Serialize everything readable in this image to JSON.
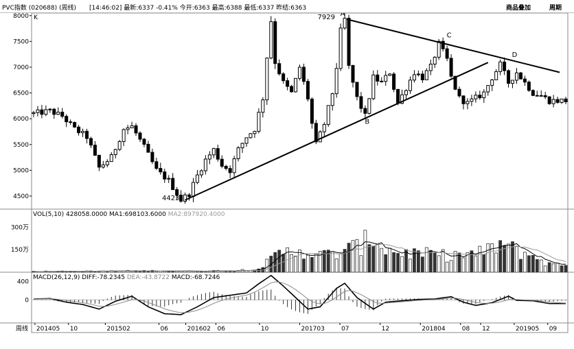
{
  "topbar": {
    "title": "PVC指数 (020688) (周线)",
    "quote": "[14:46:02]  最新:6337  -0.41%  今开:6363  最高:6388  最低:6337  昨结:6363",
    "btn_overlay": "商品叠加",
    "btn_period": "周期"
  },
  "chart_data": [
    {
      "type": "candlestick",
      "panel": "price",
      "label": "K",
      "ylim": [
        4300,
        8050
      ],
      "y_ticks": [
        8000,
        7500,
        7000,
        6500,
        6000,
        5500,
        5000,
        4500
      ],
      "annotations": [
        {
          "text": "A",
          "week": 75.5,
          "value": 8000
        },
        {
          "text": "7929",
          "week": 71.5,
          "value": 7929
        },
        {
          "text": "B",
          "week": 81.5,
          "value": 5900
        },
        {
          "text": "C",
          "week": 101.5,
          "value": 7580
        },
        {
          "text": "D",
          "week": 117.5,
          "value": 7200
        },
        {
          "text": "4423",
          "week": 33.5,
          "value": 4423
        }
      ],
      "trendlines": [
        {
          "from": [
            37,
            4423
          ],
          "to": [
            111,
            7090
          ]
        },
        {
          "from": [
            76.5,
            7929
          ],
          "to": [
            128.5,
            6900
          ]
        }
      ],
      "anchors": [
        [
          0,
          6100
        ],
        [
          4,
          6150
        ],
        [
          7,
          6050
        ],
        [
          10,
          5800
        ],
        [
          13,
          5650
        ],
        [
          16,
          5050
        ],
        [
          19,
          5250
        ],
        [
          22,
          5800
        ],
        [
          24,
          5850
        ],
        [
          27,
          5450
        ],
        [
          30,
          5000
        ],
        [
          33,
          4800
        ],
        [
          35,
          4550
        ],
        [
          36,
          4423
        ],
        [
          38,
          4550
        ],
        [
          40,
          4900
        ],
        [
          42,
          5200
        ],
        [
          44,
          5400
        ],
        [
          46,
          5100
        ],
        [
          48,
          5000
        ],
        [
          50,
          5400
        ],
        [
          52,
          5650
        ],
        [
          54,
          5800
        ],
        [
          56,
          6400
        ],
        [
          57,
          7200
        ],
        [
          58,
          7900
        ],
        [
          59,
          7100
        ],
        [
          61,
          6700
        ],
        [
          63,
          6500
        ],
        [
          65,
          7000
        ],
        [
          67,
          6400
        ],
        [
          68,
          5900
        ],
        [
          69,
          5500
        ],
        [
          71,
          5900
        ],
        [
          73,
          6500
        ],
        [
          74,
          7000
        ],
        [
          75,
          7700
        ],
        [
          76,
          7929
        ],
        [
          77,
          7000
        ],
        [
          79,
          6400
        ],
        [
          81,
          6050
        ],
        [
          83,
          6800
        ],
        [
          85,
          6700
        ],
        [
          87,
          6900
        ],
        [
          89,
          6300
        ],
        [
          91,
          6600
        ],
        [
          93,
          6900
        ],
        [
          95,
          6800
        ],
        [
          97,
          7000
        ],
        [
          99,
          7450
        ],
        [
          101,
          7150
        ],
        [
          102,
          6800
        ],
        [
          104,
          6400
        ],
        [
          106,
          6300
        ],
        [
          108,
          6400
        ],
        [
          110,
          6500
        ],
        [
          112,
          6800
        ],
        [
          114,
          7050
        ],
        [
          116,
          6700
        ],
        [
          118,
          6900
        ],
        [
          120,
          6700
        ],
        [
          122,
          6500
        ],
        [
          124,
          6450
        ],
        [
          126,
          6350
        ]
      ]
    },
    {
      "type": "bar",
      "panel": "volume",
      "header": {
        "name": "VOL(5,10)",
        "vol": "428058.0000",
        "ma1": "MA1:698103.6000",
        "ma2": "MA2:897920.4000",
        "ma1_color": "#000000",
        "ma2_color": "#999999"
      },
      "ylim": [
        0,
        4200000
      ],
      "y_ticks": [
        {
          "value": 3000000,
          "label": "300万"
        },
        {
          "value": 1500000,
          "label": "150万"
        }
      ],
      "anchors": [
        [
          0,
          60000
        ],
        [
          10,
          60000
        ],
        [
          20,
          80000
        ],
        [
          30,
          100000
        ],
        [
          40,
          70000
        ],
        [
          50,
          120000
        ],
        [
          55,
          250000
        ],
        [
          60,
          1200000
        ],
        [
          65,
          1500000
        ],
        [
          70,
          1100000
        ],
        [
          75,
          1300000
        ],
        [
          80,
          1800000
        ],
        [
          83,
          2400000
        ],
        [
          86,
          1500000
        ],
        [
          90,
          1300000
        ],
        [
          95,
          1200000
        ],
        [
          100,
          1100000
        ],
        [
          105,
          1150000
        ],
        [
          110,
          1300000
        ],
        [
          114,
          1900000
        ],
        [
          118,
          1400000
        ],
        [
          122,
          1100000
        ],
        [
          126,
          500000
        ]
      ]
    },
    {
      "type": "bar",
      "panel": "macd",
      "header": {
        "name": "MACD(26,12,9)",
        "diff": "DIFF:-78.2345",
        "dea": "DEA:-43.8722",
        "macd": "MACD:-68.7246",
        "diff_color": "#000000",
        "dea_color": "#888888"
      },
      "ylim": [
        -500,
        600
      ],
      "y_ticks": [
        400,
        0
      ],
      "anchors": [
        [
          0,
          20
        ],
        [
          4,
          30
        ],
        [
          8,
          -50
        ],
        [
          12,
          -100
        ],
        [
          16,
          -200
        ],
        [
          20,
          -30
        ],
        [
          24,
          80
        ],
        [
          28,
          -150
        ],
        [
          32,
          -300
        ],
        [
          36,
          -320
        ],
        [
          40,
          -150
        ],
        [
          44,
          50
        ],
        [
          48,
          100
        ],
        [
          52,
          150
        ],
        [
          55,
          350
        ],
        [
          58,
          530
        ],
        [
          61,
          300
        ],
        [
          64,
          50
        ],
        [
          67,
          -200
        ],
        [
          70,
          -150
        ],
        [
          74,
          250
        ],
        [
          76,
          360
        ],
        [
          79,
          50
        ],
        [
          83,
          -200
        ],
        [
          86,
          -50
        ],
        [
          90,
          -20
        ],
        [
          94,
          10
        ],
        [
          98,
          20
        ],
        [
          102,
          70
        ],
        [
          105,
          -50
        ],
        [
          108,
          -120
        ],
        [
          112,
          -60
        ],
        [
          116,
          80
        ],
        [
          118,
          -10
        ],
        [
          122,
          -20
        ],
        [
          126,
          -80
        ]
      ]
    }
  ],
  "x_axis": {
    "label": "周线",
    "ticks": [
      {
        "week": 1,
        "label": "201405"
      },
      {
        "week": 11,
        "label": "10"
      },
      {
        "week": 22,
        "label": "201502"
      },
      {
        "week": 38,
        "label": "06"
      },
      {
        "week": 46,
        "label": "201602"
      },
      {
        "week": 55,
        "label": "06"
      },
      {
        "week": 68,
        "label": "10"
      },
      {
        "week": 80,
        "label": "201703"
      },
      {
        "week": 92,
        "label": "07"
      },
      {
        "week": 104,
        "label": "12"
      },
      {
        "week": 116,
        "label": "201804"
      },
      {
        "week": 128,
        "label": "08"
      },
      {
        "week": 134,
        "label": "12"
      },
      {
        "week": 144,
        "label": "201905"
      },
      {
        "week": 154,
        "label": "09"
      }
    ]
  }
}
